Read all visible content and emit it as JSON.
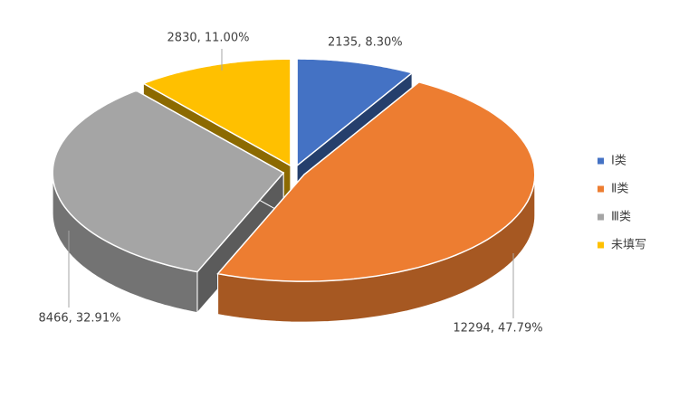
{
  "chart_data": {
    "type": "pie3d",
    "categories": [
      "Ⅰ类",
      "Ⅱ类",
      "Ⅲ类",
      "未填写"
    ],
    "values": [
      2135,
      12294,
      8466,
      2830
    ],
    "value_labels": [
      "2135, 8.30%",
      "12294, 47.79%",
      "8466, 32.91%",
      "2830, 11.00%"
    ],
    "colors": [
      "#4472c4",
      "#ed7d31",
      "#a5a5a5",
      "#ffc000"
    ],
    "legend": "right"
  }
}
